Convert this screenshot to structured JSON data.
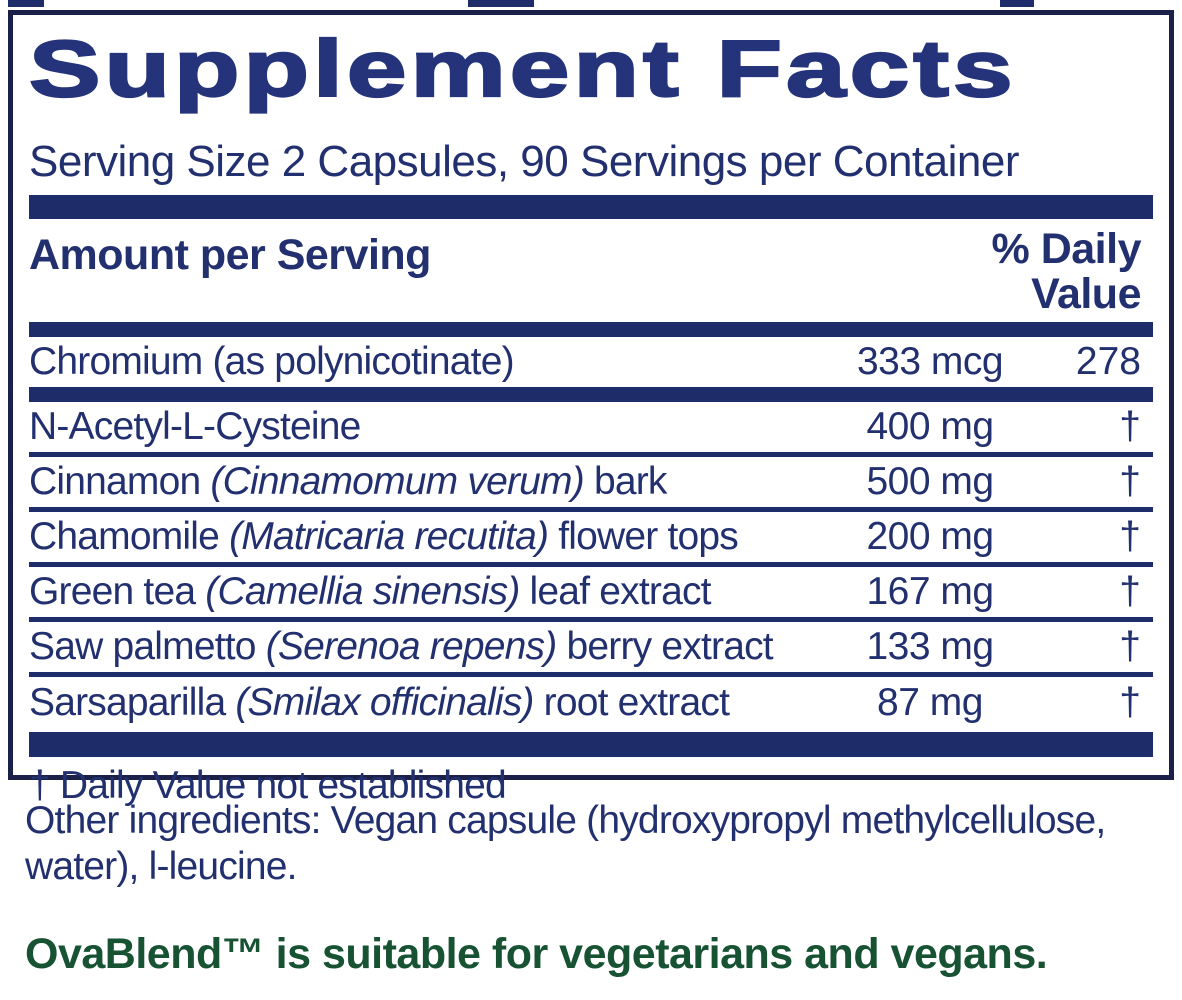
{
  "title": "Supplement Facts",
  "serving_info": "Serving Size 2 Capsules, 90 Servings per Container",
  "table": {
    "header_left": "Amount per Serving",
    "header_right_line1": "% Daily",
    "header_right_line2": "Value",
    "rows": [
      {
        "name_prefix": "Chromium (as polynicotinate)",
        "name_latin": "",
        "name_suffix": "",
        "amount": "333 mcg",
        "dv": "278"
      },
      {
        "name_prefix": "N-Acetyl-L-Cysteine",
        "name_latin": "",
        "name_suffix": "",
        "amount": "400 mg",
        "dv": "†"
      },
      {
        "name_prefix": "Cinnamon ",
        "name_latin": "(Cinnamomum verum)",
        "name_suffix": " bark",
        "amount": "500 mg",
        "dv": "†"
      },
      {
        "name_prefix": "Chamomile ",
        "name_latin": "(Matricaria recutita)",
        "name_suffix": " flower tops",
        "amount": "200 mg",
        "dv": "†"
      },
      {
        "name_prefix": "Green tea ",
        "name_latin": "(Camellia sinensis)",
        "name_suffix": " leaf extract",
        "amount": "167 mg",
        "dv": "†"
      },
      {
        "name_prefix": "Saw palmetto ",
        "name_latin": "(Serenoa repens)",
        "name_suffix": " berry extract",
        "amount": "133 mg",
        "dv": "†"
      },
      {
        "name_prefix": "Sarsaparilla ",
        "name_latin": "(Smilax officinalis)",
        "name_suffix": " root extract",
        "amount": "87 mg",
        "dv": "†"
      }
    ],
    "footnote": "† Daily Value not established"
  },
  "other_ingredients": {
    "line1": "Other ingredients: Vegan capsule (hydroxypropyl methylcellulose,",
    "line2": "water), l-leucine."
  },
  "vegan_note": "OvaBlend™ is suitable for vegetarians and vegans.",
  "colors": {
    "navy_text": "#22306f",
    "bar_navy": "#1f2c6a",
    "border_navy": "#1a2047",
    "green": "#175233"
  }
}
